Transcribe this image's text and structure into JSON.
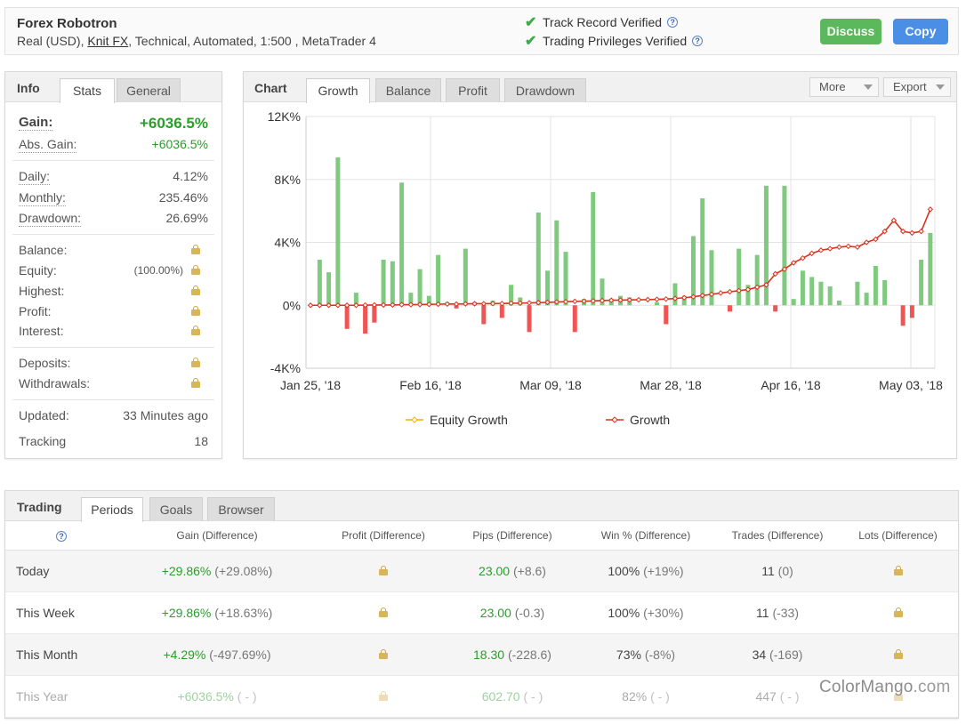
{
  "header": {
    "title": "Forex Robotron",
    "subtitle_prefix": "Real (USD), ",
    "broker": "Knit FX",
    "subtitle_suffix": ", Technical, Automated, 1:500 , MetaTrader 4",
    "verified_1": "Track Record Verified",
    "verified_2": "Trading Privileges Verified",
    "discuss": "Discuss",
    "copy": "Copy",
    "discuss_color": "#5cb85c",
    "copy_color": "#4a8ee6"
  },
  "info": {
    "title": "Info",
    "tabs": [
      "Stats",
      "General"
    ],
    "gain_label": "Gain:",
    "gain_value": "+6036.5%",
    "abs_gain_label": "Abs. Gain:",
    "abs_gain_value": "+6036.5%",
    "daily_label": "Daily:",
    "daily_value": "4.12%",
    "monthly_label": "Monthly:",
    "monthly_value": "235.46%",
    "drawdown_label": "Drawdown:",
    "drawdown_value": "26.69%",
    "balance_label": "Balance:",
    "equity_label": "Equity:",
    "equity_pct": "(100.00%)",
    "highest_label": "Highest:",
    "profit_label": "Profit:",
    "interest_label": "Interest:",
    "deposits_label": "Deposits:",
    "withdrawals_label": "Withdrawals:",
    "updated_label": "Updated:",
    "updated_value": "33 Minutes ago",
    "tracking_label": "Tracking",
    "tracking_value": "18"
  },
  "chart_panel": {
    "title": "Chart",
    "tabs": [
      "Growth",
      "Balance",
      "Profit",
      "Drawdown"
    ],
    "more": "More",
    "export": "Export"
  },
  "chart_data": {
    "type": "bar",
    "ylim": [
      -4000,
      12000
    ],
    "y_ticks": [
      "12K%",
      "8K%",
      "4K%",
      "0%",
      "-4K%"
    ],
    "y_tick_values": [
      12000,
      8000,
      4000,
      0,
      -4000
    ],
    "x_ticks": [
      "Jan 25, '18",
      "Feb 16, '18",
      "Mar 09, '18",
      "Mar 28, '18",
      "Apr 16, '18",
      "May 03, '18"
    ],
    "legend": [
      "Equity Growth",
      "Growth"
    ],
    "legend_colors": [
      "#f0b400",
      "#d9321e"
    ],
    "bar_color_pos": "#7fca7f",
    "bar_color_neg": "#ef5555",
    "bars": [
      0,
      2900,
      2100,
      9400,
      -1500,
      800,
      -1800,
      -1100,
      2900,
      2800,
      7800,
      800,
      2300,
      600,
      3200,
      200,
      -200,
      3600,
      200,
      -1200,
      300,
      -800,
      1300,
      500,
      -1700,
      5900,
      2200,
      5400,
      3400,
      -1700,
      400,
      7200,
      1700,
      400,
      600,
      500,
      0,
      0,
      200,
      -1200,
      1400,
      600,
      4400,
      6800,
      3500,
      0,
      -400,
      3600,
      1300,
      3200,
      7600,
      -400,
      7600,
      400,
      2200,
      1800,
      1500,
      1200,
      300,
      0,
      1500,
      800,
      2500,
      1600,
      0,
      -1300,
      -800,
      2900,
      4600
    ],
    "growth": [
      0,
      0,
      0,
      0,
      0,
      0,
      10,
      20,
      20,
      20,
      40,
      40,
      50,
      60,
      70,
      80,
      80,
      90,
      100,
      100,
      110,
      110,
      130,
      140,
      150,
      170,
      190,
      210,
      230,
      250,
      260,
      280,
      300,
      320,
      330,
      340,
      350,
      360,
      380,
      400,
      430,
      480,
      540,
      620,
      700,
      780,
      860,
      930,
      1000,
      1150,
      1300,
      2000,
      2300,
      2700,
      3000,
      3300,
      3500,
      3600,
      3700,
      3750,
      3700,
      4000,
      4200,
      4700,
      5400,
      4700,
      4600,
      4700,
      6100
    ]
  },
  "trading": {
    "title": "Trading",
    "tabs": [
      "Periods",
      "Goals",
      "Browser"
    ],
    "columns": [
      "Gain (Difference)",
      "Profit (Difference)",
      "Pips (Difference)",
      "Win % (Difference)",
      "Trades (Difference)",
      "Lots (Difference)"
    ],
    "rows": [
      {
        "period": "Today",
        "gain": "+29.86%",
        "gain_diff": "(+29.08%)",
        "pips": "23.00",
        "pips_diff": "(+8.6)",
        "win": "100%",
        "win_diff": "(+19%)",
        "trades": "11",
        "trades_diff": "(0)"
      },
      {
        "period": "This Week",
        "gain": "+29.86%",
        "gain_diff": "(+18.63%)",
        "pips": "23.00",
        "pips_diff": "(-0.3)",
        "win": "100%",
        "win_diff": "(+30%)",
        "trades": "11",
        "trades_diff": "(-33)"
      },
      {
        "period": "This Month",
        "gain": "+4.29%",
        "gain_diff": "(-497.69%)",
        "pips": "18.30",
        "pips_diff": "(-228.6)",
        "win": "73%",
        "win_diff": "(-8%)",
        "trades": "34",
        "trades_diff": "(-169)"
      },
      {
        "period": "This Year",
        "gain": "+6036.5%",
        "gain_diff": "( - )",
        "pips": "602.70",
        "pips_diff": "( - )",
        "win": "82%",
        "win_diff": "( - )",
        "trades": "447",
        "trades_diff": "( - )"
      }
    ]
  },
  "watermark": {
    "brand": "ColorMango",
    "suffix": ".com"
  }
}
